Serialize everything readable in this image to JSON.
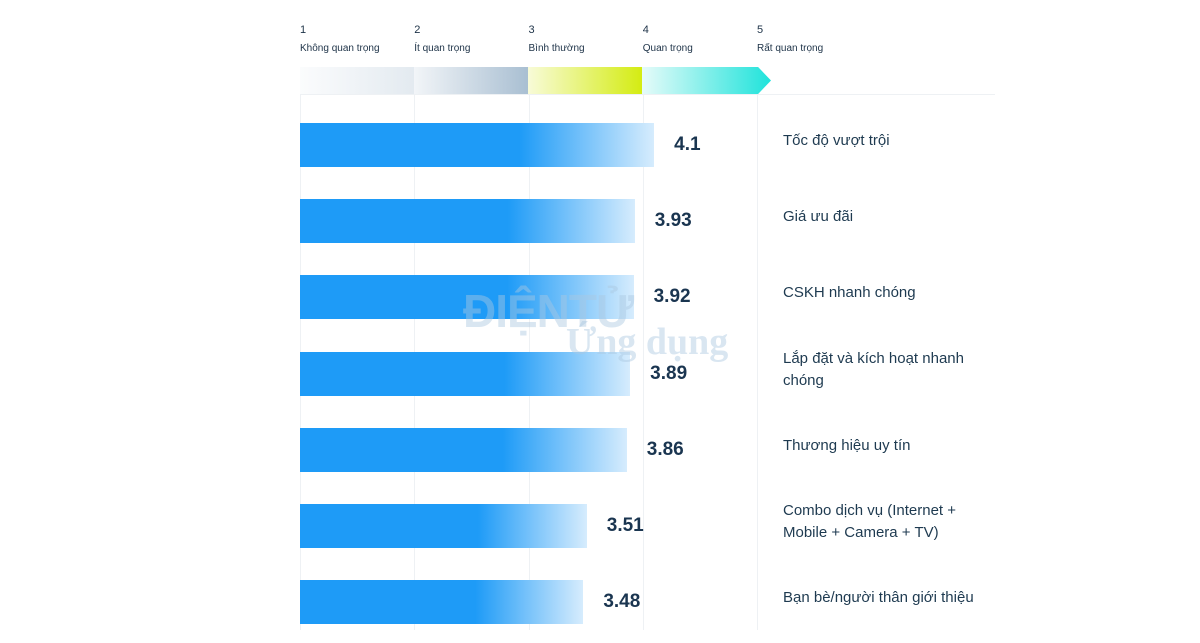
{
  "chart_data": {
    "type": "bar",
    "orientation": "horizontal",
    "xlim": [
      1,
      5
    ],
    "xticks": [
      1,
      2,
      3,
      4,
      5
    ],
    "tick_descriptions": [
      "Không quan trọng",
      "Ít quan trọng",
      "Bình thường",
      "Quan trọng",
      "Rất quan trọng"
    ],
    "categories": [
      "Tốc độ vượt trội",
      "Giá ưu đãi",
      "CSKH nhanh chóng",
      "Lắp đặt và kích hoạt nhanh chóng",
      "Thương hiệu uy tín",
      "Combo dịch vụ (Internet + Mobile + Camera + TV)",
      "Bạn bè/người thân giới thiệu"
    ],
    "values": [
      4.1,
      3.93,
      3.92,
      3.89,
      3.86,
      3.51,
      3.48
    ],
    "color": "#1e9bf7",
    "grid": true,
    "watermark": [
      "ĐIỆNTỬ",
      "Ứng dụng"
    ]
  }
}
